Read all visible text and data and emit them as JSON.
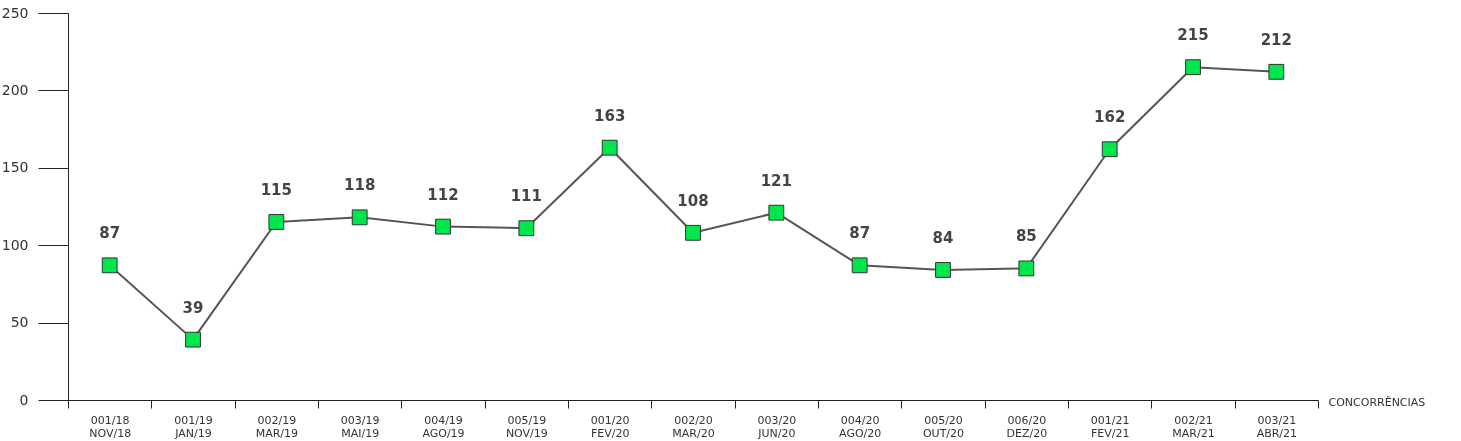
{
  "chart_data": {
    "type": "line",
    "xlabel": "CONCORRÊNCIAS",
    "categories": [
      "001/18\nNOV/18",
      "001/19\nJAN/19",
      "002/19\nMAR/19",
      "003/19\nMAI/19",
      "004/19\nAGO/19",
      "005/19\nNOV/19",
      "001/20\nFEV/20",
      "002/20\nMAR/20",
      "003/20\nJUN/20",
      "004/20\nAGO/20",
      "005/20\nOUT/20",
      "006/20\nDEZ/20",
      "001/21\nFEV/21",
      "002/21\nMAR/21",
      "003/21\nABR/21"
    ],
    "series": [
      {
        "color": "#555555",
        "values": [
          87,
          39,
          115,
          118,
          112,
          111,
          163,
          108,
          121,
          87,
          84,
          85,
          162,
          215,
          212
        ]
      }
    ],
    "marker": "square",
    "ylim": [
      0,
      250
    ],
    "yticks": [
      0,
      50,
      100,
      150,
      200,
      250
    ],
    "grid": false,
    "data_labels": true
  }
}
